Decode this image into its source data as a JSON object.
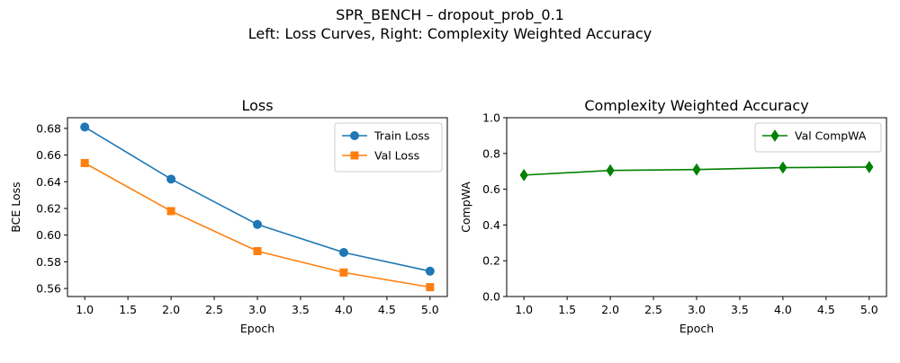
{
  "figure": {
    "suptitle_line1": "SPR_BENCH – dropout_prob_0.1",
    "suptitle_line2": "Left: Loss Curves, Right: Complexity Weighted Accuracy"
  },
  "chart_data": [
    {
      "type": "line",
      "title": "Loss",
      "xlabel": "Epoch",
      "ylabel": "BCE Loss",
      "xlim": [
        0.8,
        5.2
      ],
      "ylim": [
        0.554,
        0.688
      ],
      "xticks": [
        1.0,
        1.5,
        2.0,
        2.5,
        3.0,
        3.5,
        4.0,
        4.5,
        5.0
      ],
      "yticks": [
        0.56,
        0.58,
        0.6,
        0.62,
        0.64,
        0.66,
        0.68
      ],
      "xtick_labels": [
        "1.0",
        "1.5",
        "2.0",
        "2.5",
        "3.0",
        "3.5",
        "4.0",
        "4.5",
        "5.0"
      ],
      "ytick_labels": [
        "0.56",
        "0.58",
        "0.60",
        "0.62",
        "0.64",
        "0.66",
        "0.68"
      ],
      "legend_position": "top-right",
      "grid": false,
      "x": [
        1,
        2,
        3,
        4,
        5
      ],
      "series": [
        {
          "name": "Train Loss",
          "values": [
            0.681,
            0.642,
            0.608,
            0.587,
            0.573
          ],
          "color": "#1f77b4",
          "marker": "circle"
        },
        {
          "name": "Val Loss",
          "values": [
            0.654,
            0.618,
            0.588,
            0.572,
            0.561
          ],
          "color": "#ff7f0e",
          "marker": "square"
        }
      ]
    },
    {
      "type": "line",
      "title": "Complexity Weighted Accuracy",
      "xlabel": "Epoch",
      "ylabel": "CompWA",
      "xlim": [
        0.8,
        5.2
      ],
      "ylim": [
        0.0,
        1.0
      ],
      "xticks": [
        1.0,
        1.5,
        2.0,
        2.5,
        3.0,
        3.5,
        4.0,
        4.5,
        5.0
      ],
      "yticks": [
        0.0,
        0.2,
        0.4,
        0.6,
        0.8,
        1.0
      ],
      "xtick_labels": [
        "1.0",
        "1.5",
        "2.0",
        "2.5",
        "3.0",
        "3.5",
        "4.0",
        "4.5",
        "5.0"
      ],
      "ytick_labels": [
        "0.0",
        "0.2",
        "0.4",
        "0.6",
        "0.8",
        "1.0"
      ],
      "legend_position": "top-right",
      "grid": false,
      "x": [
        1,
        2,
        3,
        4,
        5
      ],
      "series": [
        {
          "name": "Val CompWA",
          "values": [
            0.679,
            0.705,
            0.71,
            0.721,
            0.724
          ],
          "color": "#008000",
          "marker": "diamond"
        }
      ]
    }
  ]
}
